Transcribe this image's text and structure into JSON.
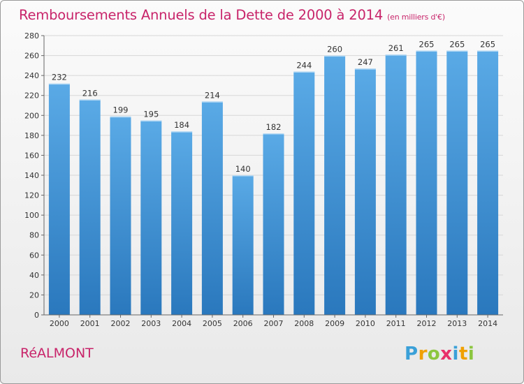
{
  "title": "Remboursements Annuels de la Dette de 2000 à 2014",
  "subtitle": "(en milliers d'€)",
  "commune": "RéALMONT",
  "logo": {
    "letters": [
      "P",
      "r",
      "o",
      "x",
      "i",
      "t",
      "i"
    ],
    "colors": [
      "#3aa0d8",
      "#f0a000",
      "#8cc63f",
      "#e8306a",
      "#3aa0d8",
      "#f0a000",
      "#8cc63f"
    ]
  },
  "colors": {
    "bar_top": "#5aaae6",
    "bar_bottom": "#2a78bd",
    "grid": "#d7d7d7",
    "axis": "#666666",
    "title": "#c8246a"
  },
  "chart_data": {
    "type": "bar",
    "title": "Remboursements Annuels de la Dette de 2000 à 2014",
    "subtitle": "(en milliers d'€)",
    "xlabel": "",
    "ylabel": "",
    "categories": [
      "2000",
      "2001",
      "2002",
      "2003",
      "2004",
      "2005",
      "2006",
      "2007",
      "2008",
      "2009",
      "2010",
      "2011",
      "2012",
      "2013",
      "2014"
    ],
    "values": [
      232,
      216,
      199,
      195,
      184,
      214,
      140,
      182,
      244,
      260,
      247,
      261,
      265,
      265,
      265
    ],
    "ylim": [
      0,
      280
    ],
    "yticks": [
      0,
      20,
      40,
      60,
      80,
      100,
      120,
      140,
      160,
      180,
      200,
      220,
      240,
      260,
      280
    ],
    "grid": true,
    "legend": "none"
  }
}
